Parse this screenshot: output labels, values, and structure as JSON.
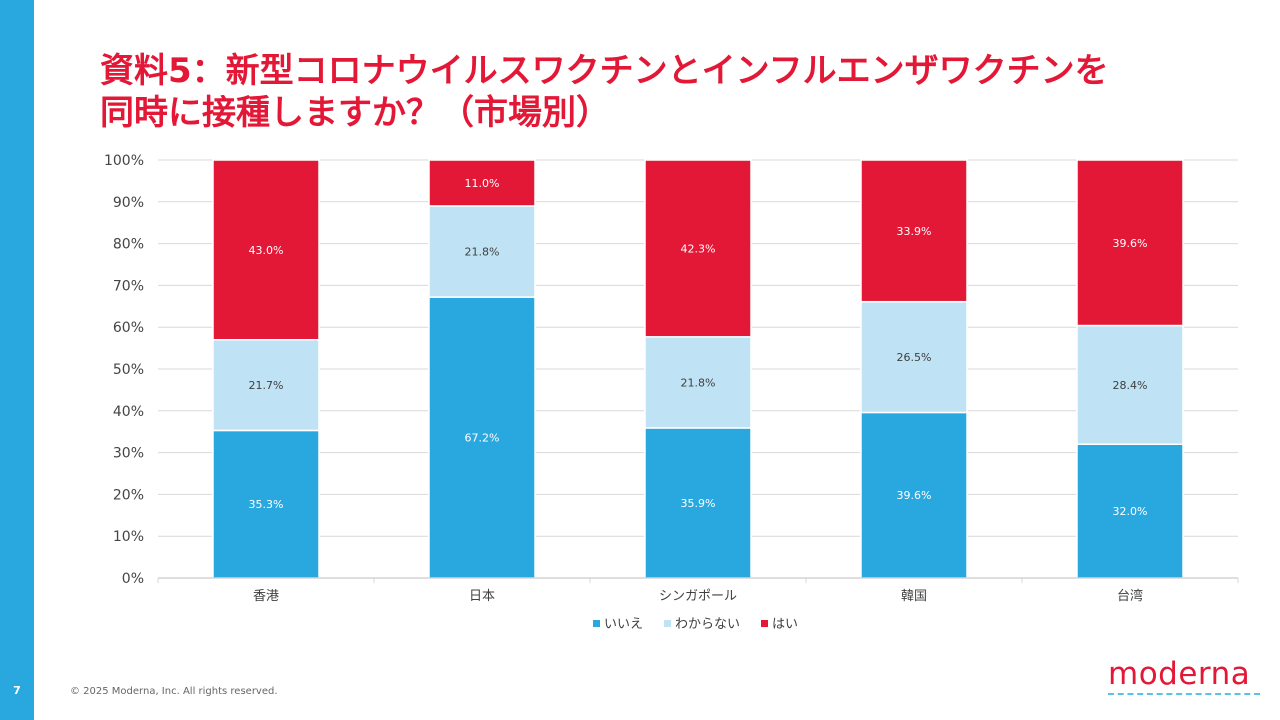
{
  "slide": {
    "page_number": "7",
    "title_line1": "資料5：新型コロナウイルスワクチンとインフルエンザワクチンを",
    "title_line2": "同時に接種しますか？（市場別）",
    "footer": "© 2025 Moderna, Inc. All rights reserved.",
    "logo": "moderna"
  },
  "colors": {
    "accent": "#e31837",
    "sidebar": "#29a8e0",
    "series": [
      "#29a8e0",
      "#bfe3f5",
      "#e31837"
    ]
  },
  "chart_data": {
    "type": "stacked-bar-100",
    "categories": [
      "香港",
      "日本",
      "シンガポール",
      "韓国",
      "台湾"
    ],
    "series": [
      {
        "name": "いいえ",
        "values": [
          35.3,
          67.2,
          35.9,
          39.6,
          32.0
        ],
        "labels": [
          "35.3%",
          "67.2%",
          "35.9%",
          "39.6%",
          "32.0%"
        ]
      },
      {
        "name": "わからない",
        "values": [
          21.7,
          21.8,
          21.8,
          26.5,
          28.4
        ],
        "labels": [
          "21.7%",
          "21.8%",
          "21.8%",
          "26.5%",
          "28.4%"
        ]
      },
      {
        "name": "はい",
        "values": [
          43.0,
          11.0,
          42.3,
          33.9,
          39.6
        ],
        "labels": [
          "43.0%",
          "11.0%",
          "42.3%",
          "33.9%",
          "39.6%"
        ]
      }
    ],
    "yticks": [
      "0%",
      "10%",
      "20%",
      "30%",
      "40%",
      "50%",
      "60%",
      "70%",
      "80%",
      "90%",
      "100%"
    ],
    "ylim": [
      0,
      100
    ],
    "grid": true,
    "legend": "bottom-center"
  }
}
